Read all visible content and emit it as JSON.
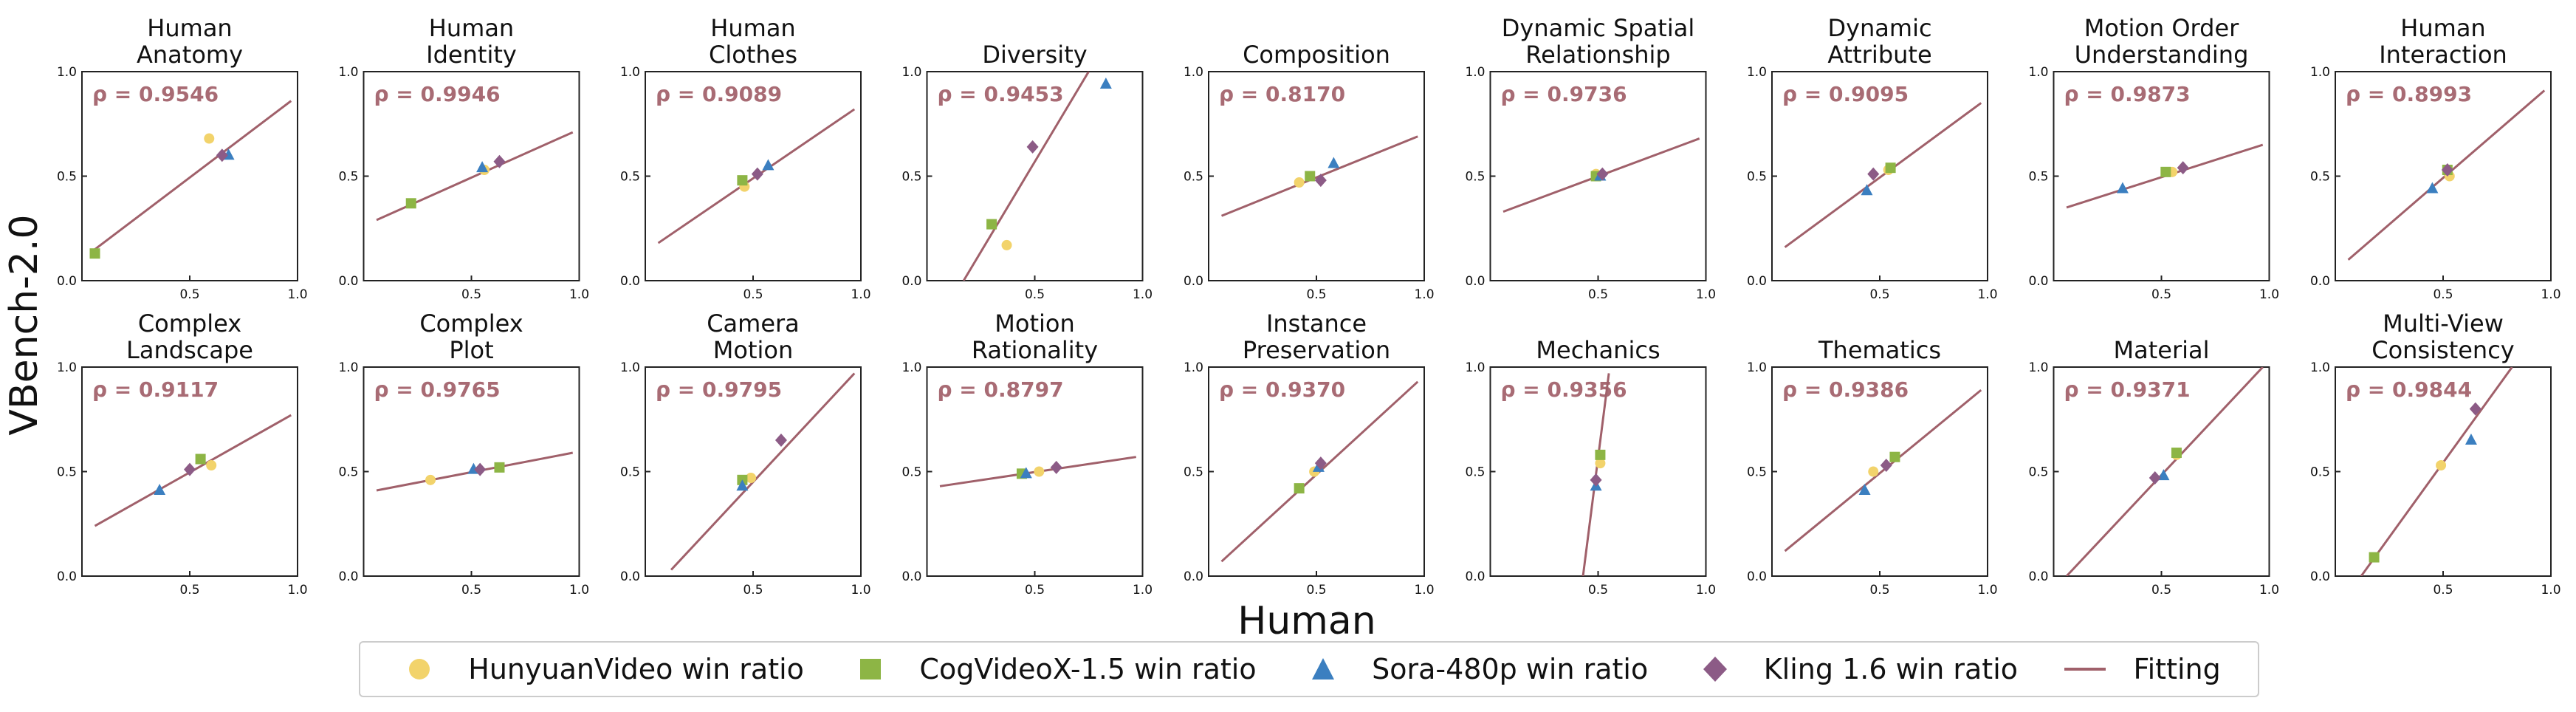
{
  "figure": {
    "y_label": "VBench-2.0",
    "x_label": "Human"
  },
  "legend": [
    {
      "label": "HunyuanVideo win ratio",
      "marker": "circle",
      "color": "#f2d36b"
    },
    {
      "label": "CogVideoX-1.5 win ratio",
      "marker": "square",
      "color": "#8db545"
    },
    {
      "label": "Sora-480p win ratio",
      "marker": "triangle",
      "color": "#3b7fc0"
    },
    {
      "label": "Kling 1.6 win ratio",
      "marker": "diamond",
      "color": "#8c5b86"
    },
    {
      "label": "Fitting",
      "marker": "line",
      "color": "#a0606a"
    }
  ],
  "colors": {
    "fit": "#a0606a",
    "rho": "#a86b74",
    "hunyuan": "#f2d36b",
    "cog": "#8db545",
    "sora": "#3b7fc0",
    "kling": "#8c5b86"
  },
  "chart_data": [
    {
      "type": "scatter",
      "title": [
        "Human",
        "Anatomy"
      ],
      "rho": "ρ = 0.9546",
      "xlim": [
        0,
        1
      ],
      "ylim": [
        0,
        1
      ],
      "ticks": [
        "0.0",
        "0.5",
        "1.0"
      ],
      "points": {
        "hunyuan": [
          0.59,
          0.68
        ],
        "cog": [
          0.06,
          0.13
        ],
        "sora": [
          0.68,
          0.6
        ],
        "kling": [
          0.65,
          0.6
        ]
      },
      "fit": [
        [
          0.06,
          0.15
        ],
        [
          0.97,
          0.86
        ]
      ]
    },
    {
      "type": "scatter",
      "title": [
        "Human",
        "Identity"
      ],
      "rho": "ρ = 0.9946",
      "xlim": [
        0,
        1
      ],
      "ylim": [
        0,
        1
      ],
      "ticks": [
        "0.0",
        "0.5",
        "1.0"
      ],
      "points": {
        "hunyuan": [
          0.56,
          0.53
        ],
        "cog": [
          0.22,
          0.37
        ],
        "sora": [
          0.55,
          0.54
        ],
        "kling": [
          0.63,
          0.57
        ]
      },
      "fit": [
        [
          0.06,
          0.29
        ],
        [
          0.97,
          0.71
        ]
      ]
    },
    {
      "type": "scatter",
      "title": [
        "Human",
        "Clothes"
      ],
      "rho": "ρ = 0.9089",
      "xlim": [
        0,
        1
      ],
      "ylim": [
        0,
        1
      ],
      "ticks": [
        "0.0",
        "0.5",
        "1.0"
      ],
      "points": {
        "hunyuan": [
          0.46,
          0.45
        ],
        "cog": [
          0.45,
          0.48
        ],
        "sora": [
          0.57,
          0.55
        ],
        "kling": [
          0.52,
          0.51
        ]
      },
      "fit": [
        [
          0.06,
          0.18
        ],
        [
          0.97,
          0.82
        ]
      ]
    },
    {
      "type": "scatter",
      "title": [
        "Diversity"
      ],
      "rho": "ρ = 0.9453",
      "xlim": [
        0,
        1
      ],
      "ylim": [
        0,
        1
      ],
      "ticks": [
        "0.0",
        "0.5",
        "1.0"
      ],
      "points": {
        "hunyuan": [
          0.37,
          0.17
        ],
        "cog": [
          0.3,
          0.27
        ],
        "sora": [
          0.83,
          0.94
        ],
        "kling": [
          0.49,
          0.64
        ]
      },
      "fit": [
        [
          0.17,
          0.0
        ],
        [
          0.75,
          1.0
        ]
      ]
    },
    {
      "type": "scatter",
      "title": [
        "Composition"
      ],
      "rho": "ρ = 0.8170",
      "xlim": [
        0,
        1
      ],
      "ylim": [
        0,
        1
      ],
      "ticks": [
        "0.0",
        "0.5",
        "1.0"
      ],
      "points": {
        "hunyuan": [
          0.42,
          0.47
        ],
        "cog": [
          0.47,
          0.5
        ],
        "sora": [
          0.58,
          0.56
        ],
        "kling": [
          0.52,
          0.48
        ]
      },
      "fit": [
        [
          0.06,
          0.31
        ],
        [
          0.97,
          0.69
        ]
      ]
    },
    {
      "type": "scatter",
      "title": [
        "Dynamic Spatial",
        "Relationship"
      ],
      "rho": "ρ = 0.9736",
      "xlim": [
        0,
        1
      ],
      "ylim": [
        0,
        1
      ],
      "ticks": [
        "0.0",
        "0.5",
        "1.0"
      ],
      "points": {
        "hunyuan": [
          0.49,
          0.51
        ],
        "cog": [
          0.49,
          0.5
        ],
        "sora": [
          0.51,
          0.5
        ],
        "kling": [
          0.52,
          0.51
        ]
      },
      "fit": [
        [
          0.06,
          0.33
        ],
        [
          0.97,
          0.68
        ]
      ]
    },
    {
      "type": "scatter",
      "title": [
        "Dynamic",
        "Attribute"
      ],
      "rho": "ρ = 0.9095",
      "xlim": [
        0,
        1
      ],
      "ylim": [
        0,
        1
      ],
      "ticks": [
        "0.0",
        "0.5",
        "1.0"
      ],
      "points": {
        "hunyuan": [
          0.54,
          0.53
        ],
        "cog": [
          0.55,
          0.54
        ],
        "sora": [
          0.44,
          0.43
        ],
        "kling": [
          0.47,
          0.51
        ]
      },
      "fit": [
        [
          0.06,
          0.16
        ],
        [
          0.97,
          0.85
        ]
      ]
    },
    {
      "type": "scatter",
      "title": [
        "Motion Order",
        "Understanding"
      ],
      "rho": "ρ = 0.9873",
      "xlim": [
        0,
        1
      ],
      "ylim": [
        0,
        1
      ],
      "ticks": [
        "0.0",
        "0.5",
        "1.0"
      ],
      "points": {
        "hunyuan": [
          0.55,
          0.52
        ],
        "cog": [
          0.52,
          0.52
        ],
        "sora": [
          0.32,
          0.44
        ],
        "kling": [
          0.6,
          0.54
        ]
      },
      "fit": [
        [
          0.06,
          0.35
        ],
        [
          0.97,
          0.65
        ]
      ]
    },
    {
      "type": "scatter",
      "title": [
        "Human",
        "Interaction"
      ],
      "rho": "ρ = 0.8993",
      "xlim": [
        0,
        1
      ],
      "ylim": [
        0,
        1
      ],
      "ticks": [
        "0.0",
        "0.5",
        "1.0"
      ],
      "points": {
        "hunyuan": [
          0.53,
          0.5
        ],
        "cog": [
          0.52,
          0.53
        ],
        "sora": [
          0.45,
          0.44
        ],
        "kling": [
          0.52,
          0.53
        ]
      },
      "fit": [
        [
          0.06,
          0.1
        ],
        [
          0.97,
          0.91
        ]
      ]
    },
    {
      "type": "scatter",
      "title": [
        "Complex",
        "Landscape"
      ],
      "rho": "ρ = 0.9117",
      "xlim": [
        0,
        1
      ],
      "ylim": [
        0,
        1
      ],
      "ticks": [
        "0.0",
        "0.5",
        "1.0"
      ],
      "points": {
        "hunyuan": [
          0.6,
          0.53
        ],
        "cog": [
          0.55,
          0.56
        ],
        "sora": [
          0.36,
          0.41
        ],
        "kling": [
          0.5,
          0.51
        ]
      },
      "fit": [
        [
          0.06,
          0.24
        ],
        [
          0.97,
          0.77
        ]
      ]
    },
    {
      "type": "scatter",
      "title": [
        "Complex",
        "Plot"
      ],
      "rho": "ρ = 0.9765",
      "xlim": [
        0,
        1
      ],
      "ylim": [
        0,
        1
      ],
      "ticks": [
        "0.0",
        "0.5",
        "1.0"
      ],
      "points": {
        "hunyuan": [
          0.31,
          0.46
        ],
        "cog": [
          0.63,
          0.52
        ],
        "sora": [
          0.51,
          0.51
        ],
        "kling": [
          0.54,
          0.51
        ]
      },
      "fit": [
        [
          0.06,
          0.41
        ],
        [
          0.97,
          0.59
        ]
      ]
    },
    {
      "type": "scatter",
      "title": [
        "Camera",
        "Motion"
      ],
      "rho": "ρ = 0.9795",
      "xlim": [
        0,
        1
      ],
      "ylim": [
        0,
        1
      ],
      "ticks": [
        "0.0",
        "0.5",
        "1.0"
      ],
      "points": {
        "hunyuan": [
          0.49,
          0.47
        ],
        "cog": [
          0.45,
          0.46
        ],
        "sora": [
          0.45,
          0.43
        ],
        "kling": [
          0.63,
          0.65
        ]
      },
      "fit": [
        [
          0.12,
          0.03
        ],
        [
          0.97,
          0.97
        ]
      ]
    },
    {
      "type": "scatter",
      "title": [
        "Motion",
        "Rationality"
      ],
      "rho": "ρ = 0.8797",
      "xlim": [
        0,
        1
      ],
      "ylim": [
        0,
        1
      ],
      "ticks": [
        "0.0",
        "0.5",
        "1.0"
      ],
      "points": {
        "hunyuan": [
          0.52,
          0.5
        ],
        "cog": [
          0.44,
          0.49
        ],
        "sora": [
          0.46,
          0.49
        ],
        "kling": [
          0.6,
          0.52
        ]
      },
      "fit": [
        [
          0.06,
          0.43
        ],
        [
          0.97,
          0.57
        ]
      ]
    },
    {
      "type": "scatter",
      "title": [
        "Instance",
        "Preservation"
      ],
      "rho": "ρ = 0.9370",
      "xlim": [
        0,
        1
      ],
      "ylim": [
        0,
        1
      ],
      "ticks": [
        "0.0",
        "0.5",
        "1.0"
      ],
      "points": {
        "hunyuan": [
          0.49,
          0.5
        ],
        "cog": [
          0.42,
          0.42
        ],
        "sora": [
          0.51,
          0.52
        ],
        "kling": [
          0.52,
          0.54
        ]
      },
      "fit": [
        [
          0.06,
          0.07
        ],
        [
          0.97,
          0.93
        ]
      ]
    },
    {
      "type": "scatter",
      "title": [
        "Mechanics"
      ],
      "rho": "ρ = 0.9356",
      "xlim": [
        0,
        1
      ],
      "ylim": [
        0,
        1
      ],
      "ticks": [
        "0.0",
        "0.5",
        "1.0"
      ],
      "points": {
        "hunyuan": [
          0.51,
          0.54
        ],
        "cog": [
          0.51,
          0.58
        ],
        "sora": [
          0.49,
          0.43
        ],
        "kling": [
          0.49,
          0.46
        ]
      },
      "fit": [
        [
          0.43,
          0.0
        ],
        [
          0.55,
          0.97
        ]
      ]
    },
    {
      "type": "scatter",
      "title": [
        "Thematics"
      ],
      "rho": "ρ = 0.9386",
      "xlim": [
        0,
        1
      ],
      "ylim": [
        0,
        1
      ],
      "ticks": [
        "0.0",
        "0.5",
        "1.0"
      ],
      "points": {
        "hunyuan": [
          0.47,
          0.5
        ],
        "cog": [
          0.57,
          0.57
        ],
        "sora": [
          0.43,
          0.41
        ],
        "kling": [
          0.53,
          0.53
        ]
      },
      "fit": [
        [
          0.06,
          0.12
        ],
        [
          0.97,
          0.89
        ]
      ]
    },
    {
      "type": "scatter",
      "title": [
        "Material"
      ],
      "rho": "ρ = 0.9371",
      "xlim": [
        0,
        1
      ],
      "ylim": [
        0,
        1
      ],
      "ticks": [
        "0.0",
        "0.5",
        "1.0"
      ],
      "points": {
        "hunyuan": [
          0.57,
          0.58
        ],
        "cog": [
          0.57,
          0.59
        ],
        "sora": [
          0.51,
          0.48
        ],
        "kling": [
          0.47,
          0.47
        ]
      },
      "fit": [
        [
          0.06,
          0.0
        ],
        [
          0.97,
          1.0
        ]
      ]
    },
    {
      "type": "scatter",
      "title": [
        "Multi-View",
        "Consistency"
      ],
      "rho": "ρ = 0.9844",
      "xlim": [
        0,
        1
      ],
      "ylim": [
        0,
        1
      ],
      "ticks": [
        "0.0",
        "0.5",
        "1.0"
      ],
      "points": {
        "hunyuan": [
          0.49,
          0.53
        ],
        "cog": [
          0.18,
          0.09
        ],
        "sora": [
          0.63,
          0.65
        ],
        "kling": [
          0.65,
          0.8
        ]
      },
      "fit": [
        [
          0.12,
          0.0
        ],
        [
          0.82,
          1.0
        ]
      ]
    }
  ]
}
